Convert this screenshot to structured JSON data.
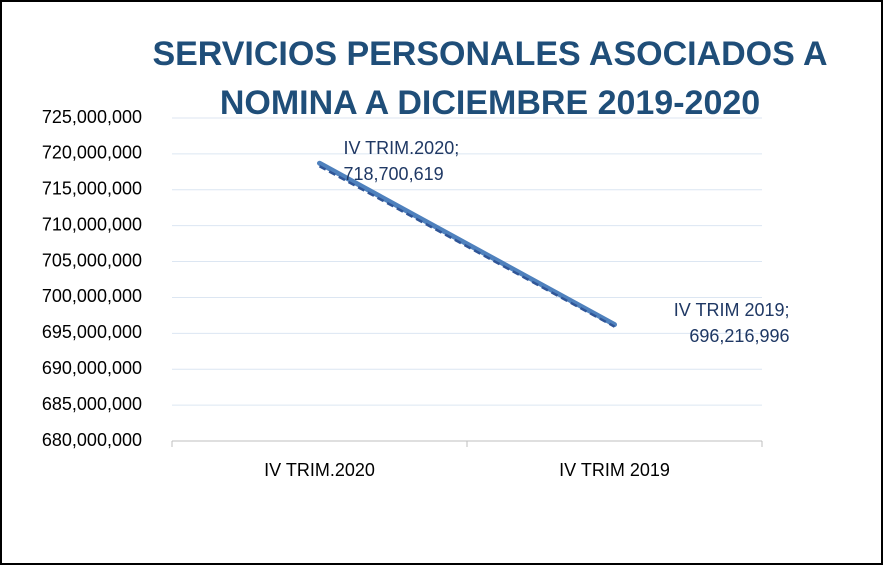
{
  "chart_data": {
    "type": "line",
    "title": [
      "SERVICIOS PERSONALES ASOCIADOS A",
      "NOMINA  A DICIEMBRE 2019-2020"
    ],
    "categories": [
      "IV TRIM.2020",
      "IV TRIM 2019"
    ],
    "series": [
      {
        "name": "Series1",
        "color": "#4f81bd",
        "values": [
          718700619,
          696216996
        ],
        "value_labels": [
          "IV TRIM.2020; 718,700,619",
          "IV TRIM 2019; 696,216,996"
        ]
      }
    ],
    "trendline": true,
    "ylim": [
      680000000,
      725000000
    ],
    "yticks": [
      {
        "value": 680000000,
        "label": "680,000,000"
      },
      {
        "value": 685000000,
        "label": "685,000,000"
      },
      {
        "value": 690000000,
        "label": "690,000,000"
      },
      {
        "value": 695000000,
        "label": "695,000,000"
      },
      {
        "value": 700000000,
        "label": "700,000,000"
      },
      {
        "value": 705000000,
        "label": "705,000,000"
      },
      {
        "value": 710000000,
        "label": "710,000,000"
      },
      {
        "value": 715000000,
        "label": "715,000,000"
      },
      {
        "value": 720000000,
        "label": "720,000,000"
      },
      {
        "value": 725000000,
        "label": "725,000,000"
      }
    ],
    "grid": true
  }
}
